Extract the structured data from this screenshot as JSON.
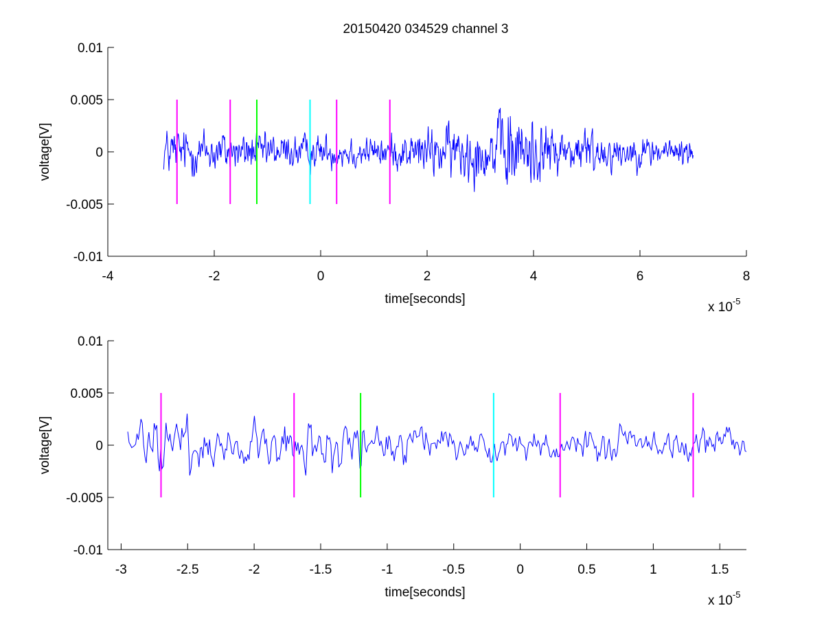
{
  "figure": {
    "title": "20150420 034529 channel 3"
  },
  "chart_data": [
    {
      "type": "line",
      "xlabel": "time[seconds]",
      "ylabel": "voltage[V]",
      "x_exponent_label": "x 10",
      "x_exponent": "-5",
      "xlim": [
        -4e-05,
        8e-05
      ],
      "ylim": [
        -0.01,
        0.01
      ],
      "x_ticks": [
        -4e-05,
        -2e-05,
        0,
        2e-05,
        4e-05,
        6e-05,
        8e-05
      ],
      "x_tick_labels": [
        "-4",
        "-2",
        "0",
        "2",
        "4",
        "6",
        "8"
      ],
      "y_ticks": [
        -0.01,
        -0.005,
        0,
        0.005,
        0.01
      ],
      "y_tick_labels": [
        "-0.01",
        "-0.005",
        "0",
        "0.005",
        "0.01"
      ],
      "grid": false,
      "series": [
        {
          "signal_color": "#0000ff",
          "x_start": -2.95e-05,
          "x_end": 7e-05,
          "num_points": 1000,
          "envelope": [
            {
              "x": -3e-05,
              "amp": 0.0017
            },
            {
              "x": -2e-05,
              "amp": 0.0016
            },
            {
              "x": -1e-05,
              "amp": 0.0013
            },
            {
              "x": 1e-05,
              "amp": 0.0011
            },
            {
              "x": 2e-05,
              "amp": 0.0016
            },
            {
              "x": 2.8e-05,
              "amp": 0.0022
            },
            {
              "x": 3.2e-05,
              "amp": 0.0018
            },
            {
              "x": 3.5e-05,
              "amp": 0.0036
            },
            {
              "x": 3.9e-05,
              "amp": 0.0026
            },
            {
              "x": 4.5e-05,
              "amp": 0.0016
            },
            {
              "x": 5e-05,
              "amp": 0.0018
            },
            {
              "x": 5.6e-05,
              "amp": 0.0012
            },
            {
              "x": 7e-05,
              "amp": 0.001
            }
          ],
          "y_min": -0.0046,
          "y_max": 0.0042
        }
      ],
      "markers": [
        {
          "x": -2.7e-05,
          "y_from": -0.005,
          "y_to": 0.005,
          "color": "#ff00ff"
        },
        {
          "x": -1.7e-05,
          "y_from": -0.005,
          "y_to": 0.005,
          "color": "#ff00ff"
        },
        {
          "x": -1.2e-05,
          "y_from": -0.005,
          "y_to": 0.005,
          "color": "#00ff00"
        },
        {
          "x": -2e-06,
          "y_from": -0.005,
          "y_to": 0.005,
          "color": "#00ffff"
        },
        {
          "x": 3e-06,
          "y_from": -0.005,
          "y_to": 0.005,
          "color": "#ff00ff"
        },
        {
          "x": 1.3e-05,
          "y_from": -0.005,
          "y_to": 0.005,
          "color": "#ff00ff"
        }
      ]
    },
    {
      "type": "line",
      "xlabel": "time[seconds]",
      "ylabel": "voltage[V]",
      "x_exponent_label": "x 10",
      "x_exponent": "-5",
      "xlim": [
        -3.1e-05,
        1.7e-05
      ],
      "ylim": [
        -0.01,
        0.01
      ],
      "x_ticks": [
        -3e-05,
        -2.5e-05,
        -2e-05,
        -1.5e-05,
        -1e-05,
        -5e-06,
        0,
        5e-06,
        1e-05,
        1.5e-05
      ],
      "x_tick_labels": [
        "-3",
        "-2.5",
        "-2",
        "-1.5",
        "-1",
        "-0.5",
        "0",
        "0.5",
        "1",
        "1.5"
      ],
      "y_ticks": [
        -0.01,
        -0.005,
        0,
        0.005,
        0.01
      ],
      "y_tick_labels": [
        "-0.01",
        "-0.005",
        "0",
        "0.005",
        "0.01"
      ],
      "grid": false,
      "series": [
        {
          "signal_color": "#0000ff",
          "x_start": -2.95e-05,
          "x_end": 1.7e-05,
          "num_points": 470,
          "envelope": [
            {
              "x": -3e-05,
              "amp": 0.0016
            },
            {
              "x": -2.5e-05,
              "amp": 0.0017
            },
            {
              "x": -2e-05,
              "amp": 0.0014
            },
            {
              "x": -1.5e-05,
              "amp": 0.0018
            },
            {
              "x": -1e-05,
              "amp": 0.0013
            },
            {
              "x": -5e-06,
              "amp": 0.001
            },
            {
              "x": 0,
              "amp": 0.001
            },
            {
              "x": 5e-06,
              "amp": 0.0011
            },
            {
              "x": 1e-05,
              "amp": 0.0011
            },
            {
              "x": 1.7e-05,
              "amp": 0.001
            }
          ],
          "y_min": -0.0029,
          "y_max": 0.0033
        }
      ],
      "markers": [
        {
          "x": -2.7e-05,
          "y_from": -0.005,
          "y_to": 0.005,
          "color": "#ff00ff"
        },
        {
          "x": -1.7e-05,
          "y_from": -0.005,
          "y_to": 0.005,
          "color": "#ff00ff"
        },
        {
          "x": -1.2e-05,
          "y_from": -0.005,
          "y_to": 0.005,
          "color": "#00ff00"
        },
        {
          "x": -2e-06,
          "y_from": -0.005,
          "y_to": 0.005,
          "color": "#00ffff"
        },
        {
          "x": 3e-06,
          "y_from": -0.005,
          "y_to": 0.005,
          "color": "#ff00ff"
        },
        {
          "x": 1.3e-05,
          "y_from": -0.005,
          "y_to": 0.005,
          "color": "#ff00ff"
        }
      ]
    }
  ]
}
